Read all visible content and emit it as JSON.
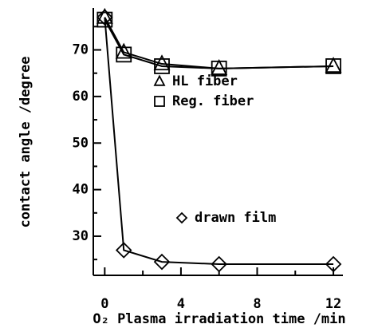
{
  "chart_data": {
    "type": "line",
    "x_label": "O₂ Plasma irradiation time /min",
    "y_label": "contact angle /degree",
    "x": [
      0,
      1,
      3,
      6,
      12
    ],
    "series": [
      {
        "name": "HL fiber",
        "marker": "triangle",
        "color": "#000",
        "values": [
          77,
          69.5,
          67,
          66,
          66.5
        ]
      },
      {
        "name": "Reg. fiber",
        "marker": "square",
        "color": "#000",
        "values": [
          76.5,
          69,
          66.5,
          66,
          66.5
        ]
      },
      {
        "name": "drawn film",
        "marker": "diamond",
        "color": "#000",
        "values": [
          77,
          27,
          24.5,
          24,
          24
        ]
      }
    ],
    "xlim": [
      -0.6,
      12.5
    ],
    "xticks": [
      0,
      4,
      8,
      12
    ],
    "xminorticks": [
      2,
      6,
      10
    ],
    "ylim": [
      21.6,
      79
    ],
    "yticks": [
      30,
      40,
      50,
      60,
      70
    ],
    "yminorticks": [
      25,
      35,
      45,
      55,
      65,
      75
    ],
    "grid": false
  }
}
